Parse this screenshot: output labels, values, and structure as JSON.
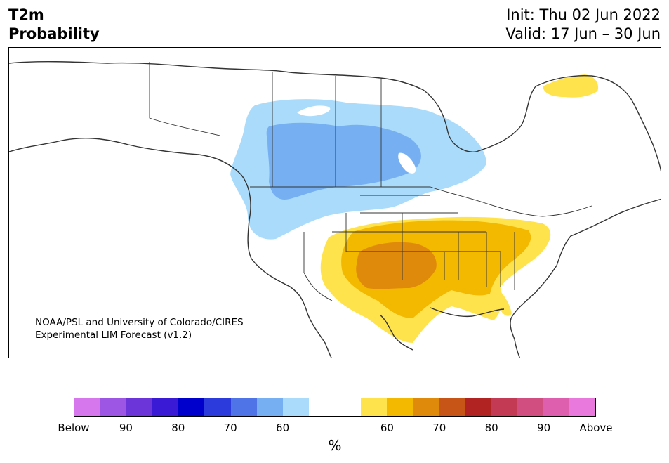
{
  "header": {
    "title_line1": "T2m",
    "title_line2": "Probability",
    "init": "Init: Thu 02 Jun 2022",
    "valid": "Valid: 17 Jun – 30 Jun"
  },
  "map": {
    "credit_line1": "NOAA/PSL and University of Colorado/CIRES",
    "credit_line2": "Experimental LIM Forecast (v1.2)",
    "region": "North America"
  },
  "colorbar": {
    "colors": [
      "#d677ee",
      "#9c56e3",
      "#6b35d9",
      "#3a1ad4",
      "#0000cc",
      "#2b3bdc",
      "#4f74e8",
      "#76b0f2",
      "#aadbfb",
      "#ffffff",
      "#ffffff",
      "#ffe34d",
      "#f3b800",
      "#e08a0c",
      "#c75517",
      "#b12222",
      "#c33a55",
      "#d14f80",
      "#dd5fad",
      "#e979dd"
    ],
    "tick_labels": [
      "Below",
      "90",
      "80",
      "70",
      "60",
      "60",
      "70",
      "80",
      "90",
      "Above"
    ],
    "unit": "%"
  }
}
